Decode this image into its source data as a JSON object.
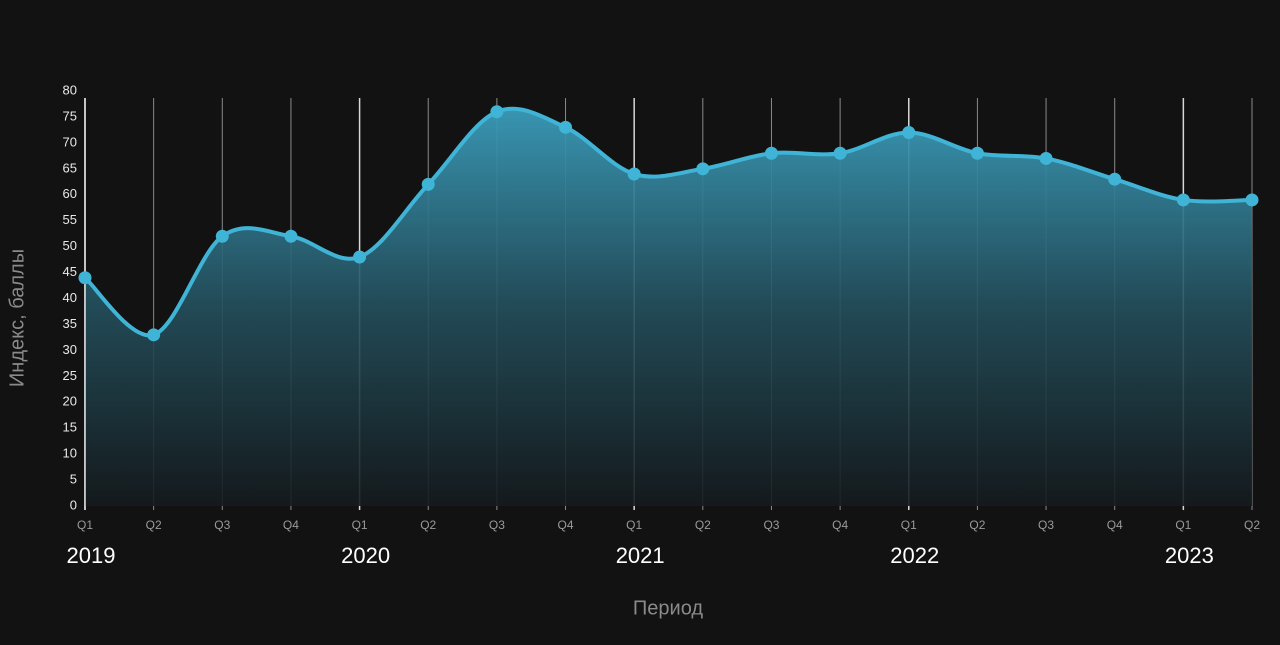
{
  "chart_data": {
    "type": "area",
    "x_label": "Период",
    "y_label": "Индекс, баллы",
    "categories": [
      "Q1",
      "Q2",
      "Q3",
      "Q4",
      "Q1",
      "Q2",
      "Q3",
      "Q4",
      "Q1",
      "Q2",
      "Q3",
      "Q4",
      "Q1",
      "Q2",
      "Q3",
      "Q4",
      "Q1",
      "Q2"
    ],
    "year_labels": [
      "2019",
      null,
      null,
      null,
      "2020",
      null,
      null,
      null,
      "2021",
      null,
      null,
      null,
      "2022",
      null,
      null,
      null,
      "2023",
      null
    ],
    "values": [
      44,
      33,
      52,
      52,
      48,
      62,
      76,
      73,
      64,
      65,
      68,
      68,
      72,
      68,
      67,
      63,
      59,
      59
    ],
    "color": "#40b4d6",
    "ylim": [
      0,
      80
    ],
    "yticks": [
      0,
      5,
      10,
      15,
      20,
      25,
      30,
      35,
      40,
      45,
      50,
      55,
      60,
      65,
      70,
      75,
      80
    ],
    "grid": true,
    "smooth": true
  }
}
